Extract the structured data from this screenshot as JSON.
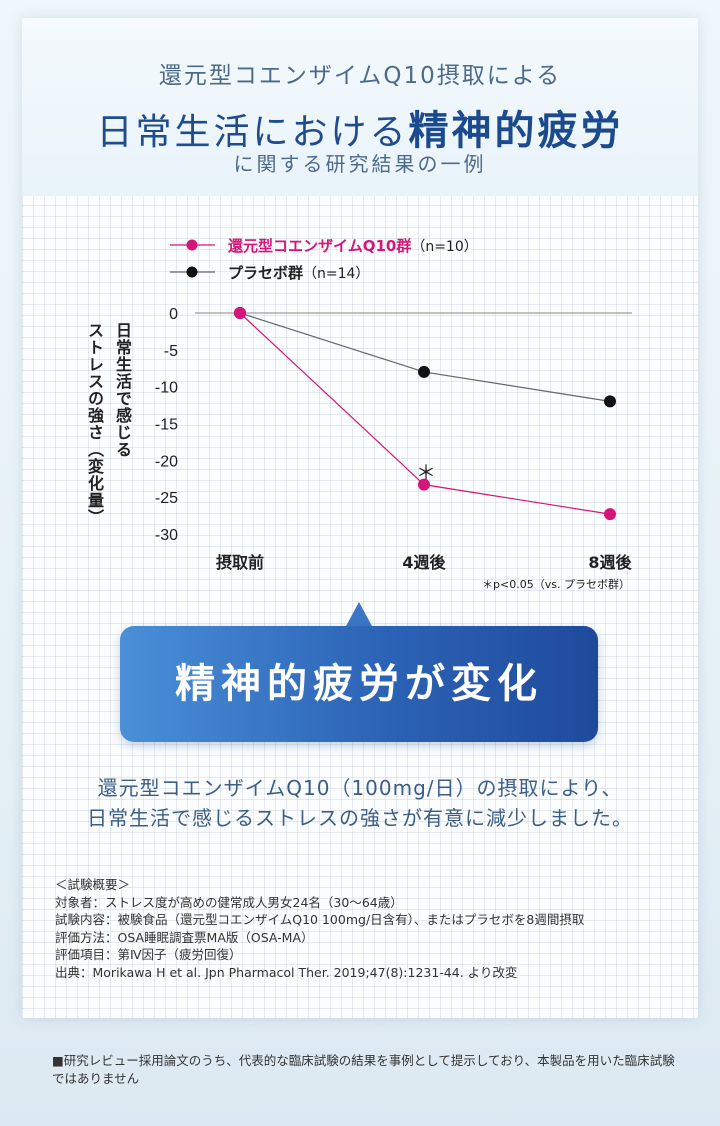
{
  "header": {
    "line1": "還元型コエンザイムQ10摂取による",
    "line2_prefix": "日常生活における",
    "line2_emph": "精神的疲労",
    "line3": "に関する研究結果の一例"
  },
  "chart_data": {
    "type": "line",
    "categories": [
      "摂取前",
      "4週後",
      "8週後"
    ],
    "series": [
      {
        "name": "還元型コエンザイムQ10群",
        "n_label": "（n=10）",
        "values": [
          0,
          -23.3,
          -27.3
        ],
        "color": "#d6157a"
      },
      {
        "name": "プラセボ群",
        "n_label": "（n=14）",
        "values": [
          0,
          -8,
          -12
        ],
        "color": "#111111"
      }
    ],
    "ylim": [
      -30,
      0
    ],
    "yticks": [
      "0",
      "-5",
      "-10",
      "-15",
      "-20",
      "-25",
      "-30"
    ],
    "ylabel_lines": [
      "日常生活で感じる",
      "ストレスの強さ（変化量）"
    ],
    "significance_mark": "＊",
    "footnote": "＊p<0.05（vs. プラセボ群）"
  },
  "callout": "精神的疲労が変化",
  "result_lines": [
    "還元型コエンザイムQ10（100mg/日）の摂取により、",
    "日常生活で感じるストレスの強さが有意に減少しました。"
  ],
  "notes": [
    "＜試験概要＞",
    "対象者：ストレス度が高めの健常成人男女24名（30〜64歳）",
    "試験内容：被験食品（還元型コエンザイムQ10 100mg/日含有）、またはプラセボを8週間摂取",
    "評価方法：OSA睡眠調査票MA版（OSA-MA）",
    "評価項目：第Ⅳ因子（疲労回復）",
    "出典：Morikawa H et al. Jpn Pharmacol Ther. 2019;47(8):1231-44. より改変"
  ],
  "disclaimer": "■研究レビュー採用論文のうち、代表的な臨床試験の結果を事例として提示しており、本製品を用いた臨床試験ではありません"
}
